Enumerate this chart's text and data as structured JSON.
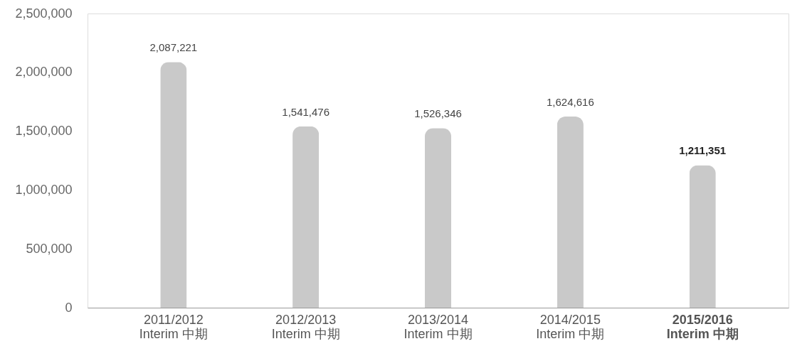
{
  "chart_data": {
    "type": "bar",
    "categories": [
      "2011/2012\nInterim 中期",
      "2012/2013\nInterim 中期",
      "2013/2014\nInterim 中期",
      "2014/2015\nInterim 中期",
      "2015/2016\nInterim 中期"
    ],
    "values": [
      2087221,
      1541476,
      1526346,
      1624616,
      1211351
    ],
    "color": "#c9c9c9",
    "value_labels": [
      "2,087,221",
      "1,541,476",
      "1,526,346",
      "1,624,616",
      "1,211,351"
    ],
    "ylim": [
      0,
      2500000
    ],
    "yticks": [
      0,
      {
        "value": 500000,
        "label": "500,000"
      },
      {
        "value": 1000000,
        "label": "1,000,000"
      },
      {
        "value": 1500000,
        "label": "1,500,000"
      },
      {
        "value": 2000000,
        "label": "2,000,000"
      },
      {
        "value": 2500000,
        "label": "2,500,000"
      }
    ],
    "grid": false
  }
}
